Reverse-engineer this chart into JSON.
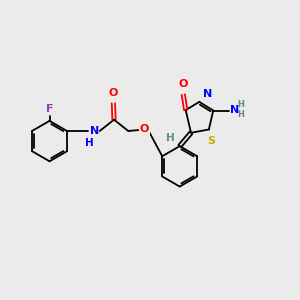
{
  "background_color": "#ebebeb",
  "fig_width": 3.0,
  "fig_height": 3.0,
  "dpi": 100,
  "lw": 1.3,
  "fs": 7.5,
  "fs_small": 6.0,
  "atom_colors": {
    "C": "#000000",
    "N": "#0000ff",
    "O": "#ff0000",
    "S": "#ccaa00",
    "F": "#9040b0",
    "H": "#5a8a8a"
  },
  "xlim": [
    0,
    10
  ],
  "ylim": [
    0,
    10
  ]
}
